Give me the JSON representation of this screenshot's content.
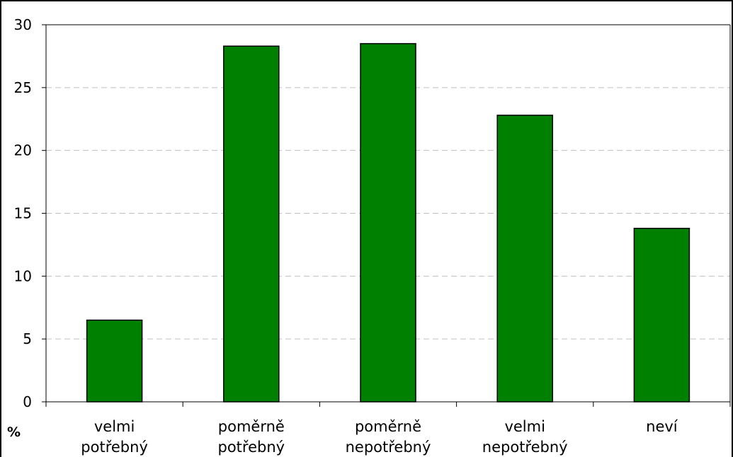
{
  "chart_data": {
    "type": "bar",
    "categories": [
      [
        "velmi",
        "potřebný"
      ],
      [
        "poměrně",
        "potřebný"
      ],
      [
        "poměrně",
        "nepotřebný"
      ],
      [
        "velmi",
        "nepotřebný"
      ],
      [
        "neví"
      ]
    ],
    "values": [
      6.5,
      28.3,
      28.5,
      22.8,
      13.8
    ],
    "ylim": [
      0,
      30
    ],
    "yticks": [
      0,
      5,
      10,
      15,
      20,
      25,
      30
    ],
    "ylabel": "%",
    "grid": true,
    "bar_color": "#008000",
    "bar_edge_color": "#000000",
    "grid_color": "#c0c0c0"
  }
}
